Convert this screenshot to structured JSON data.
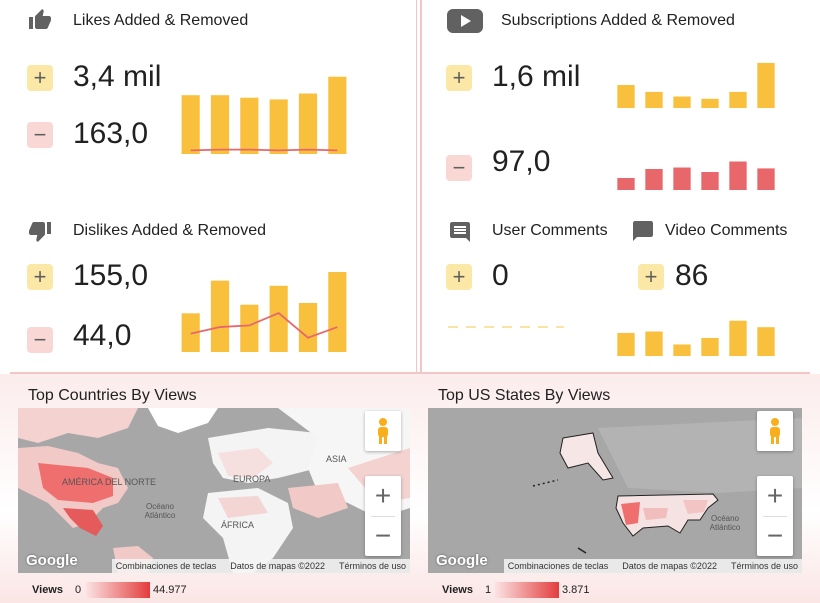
{
  "likes": {
    "title": "Likes Added & Removed",
    "added": "3,4 mil",
    "removed": "163,0",
    "added_bars": [
      0.7,
      0.7,
      0.67,
      0.65,
      0.72,
      0.92
    ],
    "removed_line": [
      0.02,
      0.03,
      0.03,
      0.02,
      0.03,
      0.02
    ]
  },
  "dislikes": {
    "title": "Dislikes Added & Removed",
    "added": "155,0",
    "removed": "44,0",
    "added_bars": [
      0.45,
      0.83,
      0.55,
      0.77,
      0.57,
      0.93
    ],
    "removed_line": [
      0.2,
      0.28,
      0.3,
      0.45,
      0.15,
      0.28
    ]
  },
  "subscriptions": {
    "title": "Subscriptions Added & Removed",
    "added": "1,6 mil",
    "removed": "97,0",
    "added_bars": [
      0.5,
      0.35,
      0.25,
      0.2,
      0.35,
      0.98
    ],
    "removed_bars": [
      0.4,
      0.7,
      0.75,
      0.6,
      0.95,
      0.72
    ]
  },
  "user_comments": {
    "title": "User Comments",
    "value": "0"
  },
  "video_comments": {
    "title": "Video Comments",
    "value": "86",
    "bars": [
      0.64,
      0.68,
      0.32,
      0.5,
      0.98,
      0.8
    ]
  },
  "countries_map": {
    "title": "Top Countries By Views",
    "labels": {
      "na": "AMÉRICA DEL NORTE",
      "eu": "EUROPA",
      "as": "ASIA",
      "af": "ÁFRICA",
      "ocean": "Océano Atlántico"
    },
    "attribution": [
      "Combinaciones de teclas",
      "Datos de mapas ©2022",
      "Términos de uso"
    ],
    "logo": "Google",
    "legend": {
      "label": "Views",
      "min": "0",
      "max": "44.977"
    }
  },
  "states_map": {
    "title": "Top US States By Views",
    "labels": {
      "ocean": "Océano Atlántico"
    },
    "attribution": [
      "Combinaciones de teclas",
      "Datos de mapas ©2022",
      "Términos de uso"
    ],
    "logo": "Google",
    "legend": {
      "label": "Views",
      "min": "1",
      "max": "3.871"
    }
  },
  "colors": {
    "bar_added": "#f9c03e",
    "bar_removed": "#e8676b",
    "line_removed": "#e8676b",
    "plus_bg": "#fbe8a6",
    "minus_bg": "#f8d7d4",
    "map_highlight": "#ef6f6f"
  }
}
